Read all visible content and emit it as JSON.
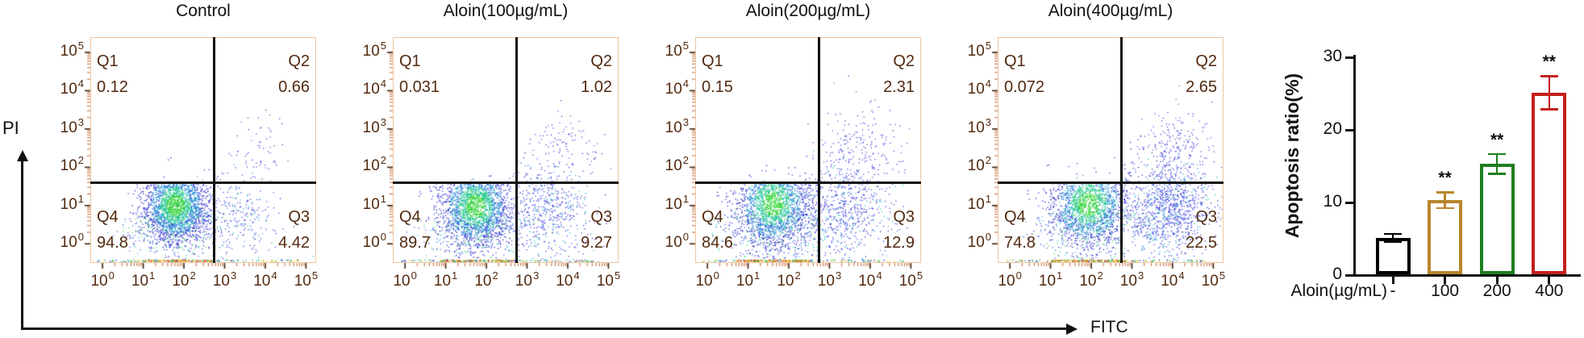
{
  "figure_axes": {
    "y_label": "PI",
    "x_label": "FITC"
  },
  "ticks": {
    "log_base": "10",
    "log_exponents": [
      "0",
      "1",
      "2",
      "3",
      "4",
      "5"
    ]
  },
  "colors": {
    "panel_border": "#f0c49c",
    "tick_text": "#522a10",
    "major_tick": "#3d2008",
    "minor_tick": "#c06433",
    "divider": "#111111"
  },
  "panels": [
    {
      "title": "Control",
      "quadrants": {
        "q1": {
          "label": "Q1",
          "value": "0.12"
        },
        "q2": {
          "label": "Q2",
          "value": "0.66"
        },
        "q3": {
          "label": "Q3",
          "value": "4.42"
        },
        "q4": {
          "label": "Q4",
          "value": "94.8"
        }
      },
      "render": {
        "seed": 11,
        "main": {
          "c": [
            1.78,
            1.02
          ],
          "s": [
            0.4,
            0.5
          ],
          "n": 2300
        },
        "q3c": {
          "c": [
            3.35,
            0.78
          ],
          "s": [
            0.5,
            0.55
          ],
          "n": 240
        },
        "q2c": {
          "c": [
            3.82,
            2.45
          ],
          "s": [
            0.38,
            0.5
          ],
          "n": 60
        },
        "strip": 240
      }
    },
    {
      "title": "Aloin(100µg/mL)",
      "quadrants": {
        "q1": {
          "label": "Q1",
          "value": "0.031"
        },
        "q2": {
          "label": "Q2",
          "value": "1.02"
        },
        "q3": {
          "label": "Q3",
          "value": "9.27"
        },
        "q4": {
          "label": "Q4",
          "value": "89.7"
        }
      },
      "render": {
        "seed": 22,
        "main": {
          "c": [
            1.72,
            1.0
          ],
          "s": [
            0.44,
            0.54
          ],
          "n": 2150
        },
        "q3c": {
          "c": [
            3.5,
            0.85
          ],
          "s": [
            0.55,
            0.62
          ],
          "n": 520
        },
        "q2c": {
          "c": [
            3.95,
            2.55
          ],
          "s": [
            0.4,
            0.5
          ],
          "n": 100
        },
        "strip": 250
      }
    },
    {
      "title": "Aloin(200µg/mL)",
      "quadrants": {
        "q1": {
          "label": "Q1",
          "value": "0.15"
        },
        "q2": {
          "label": "Q2",
          "value": "2.31"
        },
        "q3": {
          "label": "Q3",
          "value": "12.9"
        },
        "q4": {
          "label": "Q4",
          "value": "84.6"
        }
      },
      "render": {
        "seed": 33,
        "main": {
          "c": [
            1.6,
            1.05
          ],
          "s": [
            0.46,
            0.58
          ],
          "n": 2050
        },
        "q3c": {
          "c": [
            3.35,
            0.9
          ],
          "s": [
            0.58,
            0.68
          ],
          "n": 680
        },
        "q2c": {
          "c": [
            3.8,
            2.5
          ],
          "s": [
            0.5,
            0.55
          ],
          "n": 190
        },
        "strip": 260
      }
    },
    {
      "title": "Aloin(400µg/mL)",
      "quadrants": {
        "q1": {
          "label": "Q1",
          "value": "0.072"
        },
        "q2": {
          "label": "Q2",
          "value": "2.65"
        },
        "q3": {
          "label": "Q3",
          "value": "22.5"
        },
        "q4": {
          "label": "Q4",
          "value": "74.8"
        }
      },
      "render": {
        "seed": 44,
        "main": {
          "c": [
            1.92,
            1.05
          ],
          "s": [
            0.48,
            0.56
          ],
          "n": 1900
        },
        "q3c": {
          "c": [
            3.9,
            0.95
          ],
          "s": [
            0.5,
            0.62
          ],
          "n": 1050
        },
        "q2c": {
          "c": [
            4.0,
            2.55
          ],
          "s": [
            0.42,
            0.55
          ],
          "n": 220
        },
        "strip": 280
      }
    }
  ],
  "chart_data": [
    {
      "type": "scatter",
      "subtype": "flow-cytometry-quadrant",
      "title": "Control",
      "xlabel": "FITC",
      "ylabel": "PI",
      "x_scale": "log",
      "y_scale": "log",
      "x_range": [
        "10^0",
        "10^5"
      ],
      "y_range": [
        "10^0",
        "10^5"
      ],
      "quadrant_percentages": {
        "Q1": 0.12,
        "Q2": 0.66,
        "Q3": 4.42,
        "Q4": 94.8
      }
    },
    {
      "type": "scatter",
      "subtype": "flow-cytometry-quadrant",
      "title": "Aloin(100µg/mL)",
      "xlabel": "FITC",
      "ylabel": "PI",
      "x_scale": "log",
      "y_scale": "log",
      "x_range": [
        "10^0",
        "10^5"
      ],
      "y_range": [
        "10^0",
        "10^5"
      ],
      "quadrant_percentages": {
        "Q1": 0.031,
        "Q2": 1.02,
        "Q3": 9.27,
        "Q4": 89.7
      }
    },
    {
      "type": "scatter",
      "subtype": "flow-cytometry-quadrant",
      "title": "Aloin(200µg/mL)",
      "xlabel": "FITC",
      "ylabel": "PI",
      "x_scale": "log",
      "y_scale": "log",
      "x_range": [
        "10^0",
        "10^5"
      ],
      "y_range": [
        "10^0",
        "10^5"
      ],
      "quadrant_percentages": {
        "Q1": 0.15,
        "Q2": 2.31,
        "Q3": 12.9,
        "Q4": 84.6
      }
    },
    {
      "type": "scatter",
      "subtype": "flow-cytometry-quadrant",
      "title": "Aloin(400µg/mL)",
      "xlabel": "FITC",
      "ylabel": "PI",
      "x_scale": "log",
      "y_scale": "log",
      "x_range": [
        "10^0",
        "10^5"
      ],
      "y_range": [
        "10^0",
        "10^5"
      ],
      "quadrant_percentages": {
        "Q1": 0.072,
        "Q2": 2.65,
        "Q3": 22.5,
        "Q4": 74.8
      }
    },
    {
      "type": "bar",
      "title": "",
      "ylabel": "Apoptosis ratio(%)",
      "xlabel": "Aloin(µg/mL)",
      "categories": [
        "-",
        "100",
        "200",
        "400"
      ],
      "values": [
        5.0,
        10.2,
        15.2,
        25.0
      ],
      "errors": [
        0.6,
        1.1,
        1.4,
        2.3
      ],
      "significance": [
        "",
        "**",
        "**",
        "**"
      ],
      "bar_colors": [
        "#000000",
        "#b8862b",
        "#1e7e1e",
        "#c41f1f"
      ],
      "bar_fill": "#ffffff",
      "ylim": [
        0,
        30
      ],
      "yticks": [
        0,
        10,
        20,
        30
      ],
      "grid": false,
      "legend": false
    }
  ]
}
